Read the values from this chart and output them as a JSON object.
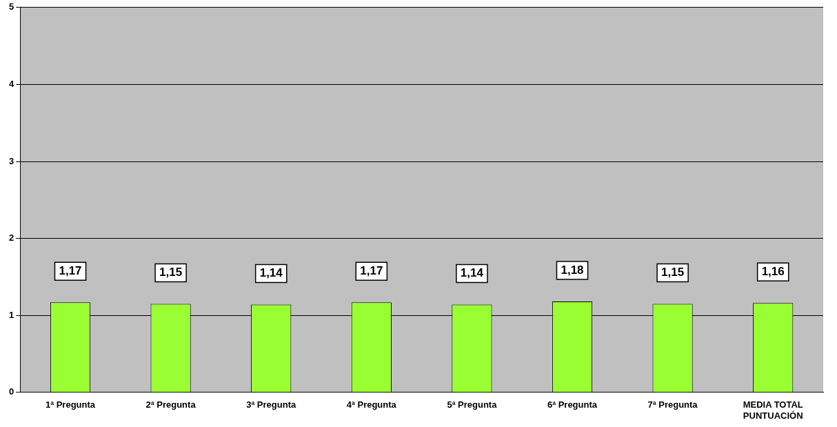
{
  "chart_data": {
    "type": "bar",
    "categories": [
      "1ª Pregunta",
      "2ª Pregunta",
      "3ª Pregunta",
      "4ª Pregunta",
      "5ª Pregunta",
      "6ª Pregunta",
      "7ª Pregunta",
      "MEDIA TOTAL PUNTUACIÓN"
    ],
    "values": [
      1.17,
      1.15,
      1.14,
      1.17,
      1.14,
      1.18,
      1.15,
      1.16
    ],
    "value_labels": [
      "1,17",
      "1,15",
      "1,14",
      "1,17",
      "1,14",
      "1,18",
      "1,15",
      "1,16"
    ],
    "color": "#99ff33",
    "ylim": [
      0,
      5
    ],
    "yticks": [
      0,
      1,
      2,
      3,
      4,
      5
    ],
    "grid": "y",
    "legend": false
  }
}
